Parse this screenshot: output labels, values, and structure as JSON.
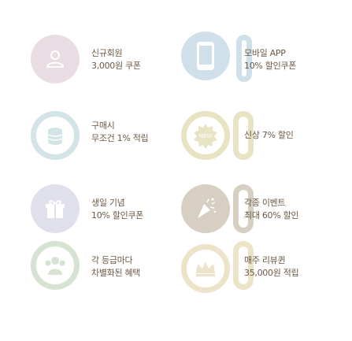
{
  "benefits": [
    {
      "name": "signup",
      "icon": "user-icon",
      "color": "#e9dde3",
      "line1": "신규회원",
      "line2": "3,000원 쿠폰"
    },
    {
      "name": "mobile-app",
      "icon": "smartphone-icon",
      "color": "#cfe0ea",
      "line1": "모바일 APP",
      "line2": "10% 할인쿠폰"
    },
    {
      "name": "purchase",
      "icon": "coins-icon",
      "color": "#d3e4e6",
      "line1": "구매시",
      "line2": "무조건 1% 적립"
    },
    {
      "name": "new-product",
      "icon": "new-badge-icon",
      "color": "#e7e3c3",
      "line1": "신상 7% 할인",
      "line2": ""
    },
    {
      "name": "birthday",
      "icon": "gift-icon",
      "color": "#e0dfec",
      "line1": "생일 기념",
      "line2": "10% 할인쿠폰"
    },
    {
      "name": "events",
      "icon": "party-popper-icon",
      "color": "#d7cfc2",
      "line1": "각종 이벤트",
      "line2": "최대 60% 할인"
    },
    {
      "name": "grade",
      "icon": "people-icon",
      "color": "#d6e3d2",
      "line1": "각 등급마다",
      "line2": "차별화된 혜택"
    },
    {
      "name": "review",
      "icon": "crown-icon",
      "color": "#ece3c9",
      "line1": "매주 리뷰퀸",
      "line2": "35,000원 적립"
    }
  ]
}
